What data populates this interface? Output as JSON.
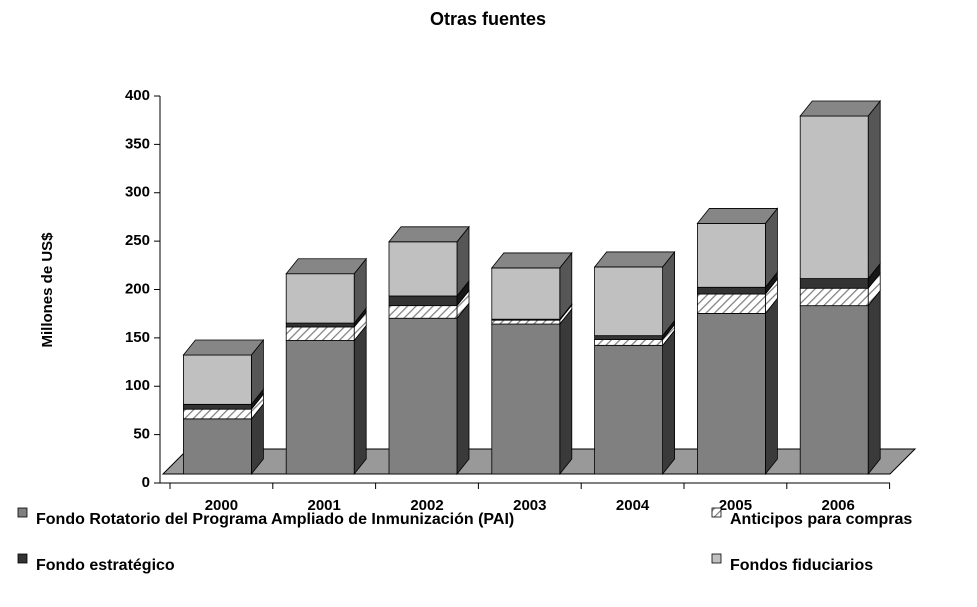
{
  "chart_data": {
    "type": "bar3d_stacked",
    "title": "Otras fuentes",
    "y_label": "Millones de US$",
    "categories": [
      "2000",
      "2001",
      "2002",
      "2003",
      "2004",
      "2005",
      "2006"
    ],
    "series": [
      {
        "name": "Fondo Rotatorio del Programa Ampliado de Inmunización (PAI)",
        "color": "#808080",
        "values": [
          57,
          138,
          161,
          155,
          133,
          166,
          174
        ]
      },
      {
        "name": "Anticipos para compras",
        "color": "#ffffff",
        "hatch": true,
        "values": [
          10,
          14,
          13,
          4,
          6,
          20,
          18
        ]
      },
      {
        "name": "Fondo estratégico",
        "color": "#333333",
        "values": [
          5,
          4,
          10,
          1,
          4,
          7,
          10
        ]
      },
      {
        "name": "Fondos fiduciarios",
        "color": "#c0c0c0",
        "values": [
          51,
          51,
          56,
          53,
          71,
          66,
          168
        ]
      }
    ],
    "ylim": [
      0,
      400
    ],
    "yticks": [
      0,
      50,
      100,
      150,
      200,
      250,
      300,
      350,
      400
    ]
  }
}
